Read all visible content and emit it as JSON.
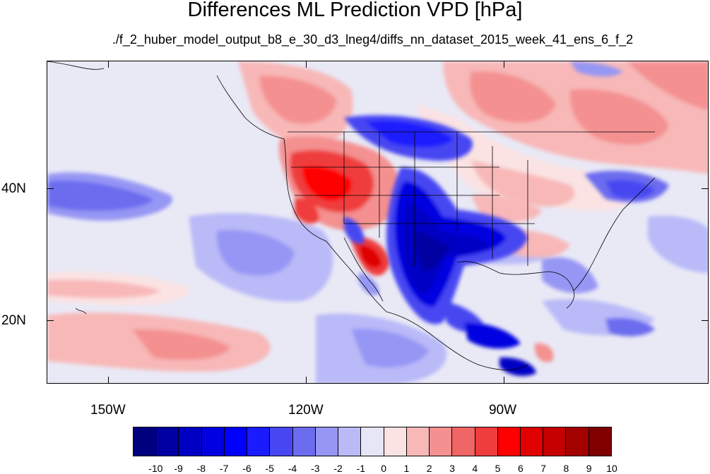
{
  "title": "Differences ML Prediction VPD [hPa]",
  "subtitle": "./f_2_huber_model_output_b8_e_30_d3_lneg4/diffs_nn_dataset_2015_week_41_ens_6_f_2",
  "axes": {
    "lon_range": [
      -160,
      -62
    ],
    "lat_range": [
      10,
      59
    ],
    "lat_ticks": [
      {
        "value": 40,
        "label": "40N"
      },
      {
        "value": 20,
        "label": "20N"
      }
    ],
    "lon_ticks": [
      {
        "value": -150,
        "label": "150W"
      },
      {
        "value": -120,
        "label": "120W"
      },
      {
        "value": -90,
        "label": "90W"
      }
    ]
  },
  "colorbar": {
    "labels": [
      "-10",
      "-9",
      "-8",
      "-7",
      "-6",
      "-5",
      "-4",
      "-3",
      "-2",
      "-1",
      "0",
      "1",
      "2",
      "3",
      "4",
      "5",
      "6",
      "7",
      "8",
      "9",
      "10"
    ],
    "colors": [
      "#00007f",
      "#0000a3",
      "#0000c4",
      "#0000e0",
      "#0000ff",
      "#1b1bff",
      "#4747f2",
      "#6c6cef",
      "#9696f5",
      "#babaf8",
      "#e6e6f6",
      "#fbe3e3",
      "#f8b8b8",
      "#f49090",
      "#f06565",
      "#ef3c3c",
      "#ff0000",
      "#e00000",
      "#c40000",
      "#a30000",
      "#800000"
    ]
  },
  "chart_data": {
    "type": "heatmap",
    "variable": "VPD difference",
    "units": "hPa",
    "range": [
      -10,
      10
    ],
    "regions": [
      {
        "lon": -117,
        "lat": 40,
        "value": 6
      },
      {
        "lon": -111,
        "lat": 42,
        "value": 5
      },
      {
        "lon": -108,
        "lat": 32,
        "value": 7
      },
      {
        "lon": -97,
        "lat": 35,
        "value": -9
      },
      {
        "lon": -102,
        "lat": 28,
        "value": -9
      },
      {
        "lon": -102,
        "lat": 44,
        "value": -6
      },
      {
        "lon": -120,
        "lat": 52,
        "value": 3
      },
      {
        "lon": -88,
        "lat": 52,
        "value": 3
      },
      {
        "lon": -72,
        "lat": 51,
        "value": 3
      },
      {
        "lon": -150,
        "lat": 38,
        "value": -2
      },
      {
        "lon": -150,
        "lat": 15,
        "value": 2
      },
      {
        "lon": -88,
        "lat": 16,
        "value": -7
      },
      {
        "lon": -73,
        "lat": 41,
        "value": -4
      },
      {
        "lon": -83,
        "lat": 27,
        "value": -4
      }
    ]
  }
}
